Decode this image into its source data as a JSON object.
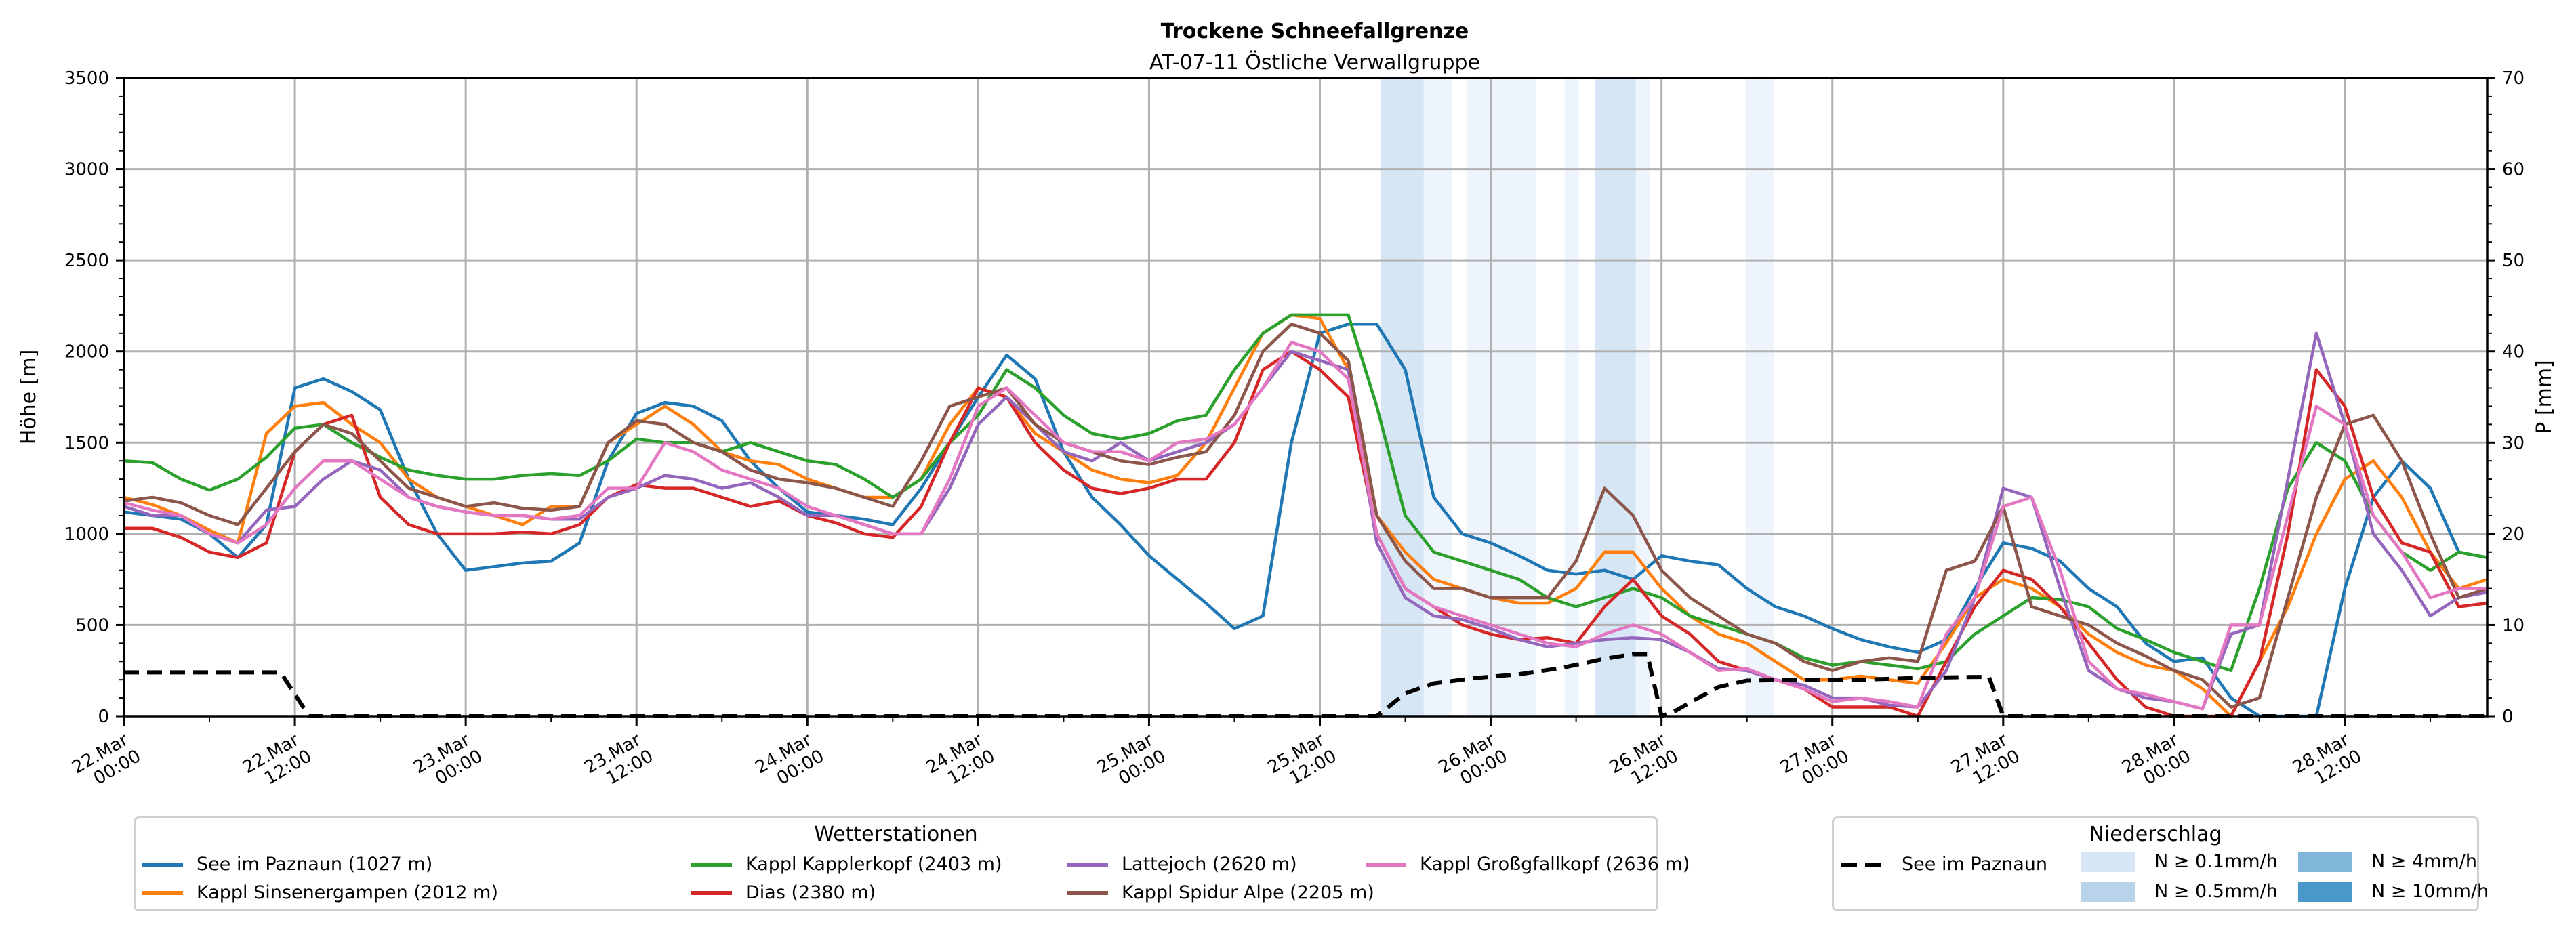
{
  "chart_data": {
    "type": "line",
    "title": "Trockene Schneefallgrenze",
    "subtitle": "AT-07-11 Östliche Verwallgruppe",
    "ylabel": "Höhe [m]",
    "y2label": "P [mm]",
    "ylim": [
      0,
      3500
    ],
    "y2lim": [
      0,
      70
    ],
    "yticks": [
      "0",
      "500",
      "1000",
      "1500",
      "2000",
      "2500",
      "3000",
      "3500"
    ],
    "y2ticks": [
      "0",
      "10",
      "20",
      "30",
      "40",
      "50",
      "60",
      "70"
    ],
    "x_unit": "hours since 22.Mar 00:00",
    "xlim": [
      0,
      166
    ],
    "xticks": [
      {
        "h": 0,
        "label1": "22.Mar",
        "label2": "00:00"
      },
      {
        "h": 12,
        "label1": "22.Mar",
        "label2": "12:00"
      },
      {
        "h": 24,
        "label1": "23.Mar",
        "label2": "00:00"
      },
      {
        "h": 36,
        "label1": "23.Mar",
        "label2": "12:00"
      },
      {
        "h": 48,
        "label1": "24.Mar",
        "label2": "00:00"
      },
      {
        "h": 60,
        "label1": "24.Mar",
        "label2": "12:00"
      },
      {
        "h": 72,
        "label1": "25.Mar",
        "label2": "00:00"
      },
      {
        "h": 84,
        "label1": "25.Mar",
        "label2": "12:00"
      },
      {
        "h": 96,
        "label1": "26.Mar",
        "label2": "00:00"
      },
      {
        "h": 108,
        "label1": "26.Mar",
        "label2": "12:00"
      },
      {
        "h": 120,
        "label1": "27.Mar",
        "label2": "00:00"
      },
      {
        "h": 132,
        "label1": "27.Mar",
        "label2": "12:00"
      },
      {
        "h": 144,
        "label1": "28.Mar",
        "label2": "00:00"
      },
      {
        "h": 156,
        "label1": "28.Mar",
        "label2": "12:00"
      }
    ],
    "grid": true,
    "x": [
      0,
      2,
      4,
      6,
      8,
      10,
      12,
      14,
      16,
      18,
      20,
      22,
      24,
      26,
      28,
      30,
      32,
      34,
      36,
      38,
      40,
      42,
      44,
      46,
      48,
      50,
      52,
      54,
      56,
      58,
      60,
      62,
      64,
      66,
      68,
      70,
      72,
      74,
      76,
      78,
      80,
      82,
      84,
      86,
      88,
      90,
      92,
      94,
      96,
      98,
      100,
      102,
      104,
      106,
      108,
      110,
      112,
      114,
      116,
      118,
      120,
      122,
      124,
      126,
      128,
      130,
      132,
      134,
      136,
      138,
      140,
      142,
      144,
      146,
      148,
      150,
      152,
      154,
      156,
      158,
      160,
      162,
      164,
      166
    ],
    "series": [
      {
        "name": "See im Paznaun (1027 m)",
        "color": "#1f77b4",
        "values": [
          1120,
          1100,
          1080,
          1000,
          870,
          1050,
          1800,
          1850,
          1780,
          1680,
          1300,
          1000,
          800,
          820,
          840,
          850,
          950,
          1400,
          1660,
          1720,
          1700,
          1620,
          1400,
          1250,
          1120,
          1100,
          1080,
          1050,
          1250,
          1500,
          1750,
          1980,
          1850,
          1450,
          1200,
          1050,
          880,
          750,
          620,
          480,
          550,
          1500,
          2100,
          2150,
          2150,
          1900,
          1200,
          1000,
          950,
          880,
          800,
          780,
          800,
          750,
          880,
          850,
          830,
          700,
          600,
          550,
          480,
          420,
          380,
          350,
          420,
          700,
          950,
          920,
          850,
          700,
          600,
          400,
          300,
          320,
          100,
          0,
          0,
          0,
          700,
          1200,
          1400,
          1250,
          900,
          870
        ]
      },
      {
        "name": "Kappl Sinsenergampen (2012 m)",
        "color": "#ff7f0e",
        "values": [
          1200,
          1160,
          1100,
          1020,
          950,
          1550,
          1700,
          1720,
          1600,
          1500,
          1300,
          1200,
          1150,
          1100,
          1050,
          1150,
          1150,
          1500,
          1600,
          1700,
          1600,
          1450,
          1400,
          1380,
          1300,
          1250,
          1200,
          1200,
          1300,
          1600,
          1800,
          1750,
          1550,
          1450,
          1350,
          1300,
          1280,
          1320,
          1500,
          1800,
          2100,
          2200,
          2180,
          1900,
          1100,
          900,
          750,
          700,
          650,
          620,
          620,
          700,
          900,
          900,
          700,
          550,
          450,
          400,
          300,
          200,
          200,
          220,
          200,
          180,
          400,
          650,
          750,
          700,
          600,
          450,
          350,
          280,
          250,
          150,
          0,
          300,
          600,
          1000,
          1300,
          1400,
          1200,
          900,
          700,
          750
        ]
      },
      {
        "name": "Kappl Kapplerkopf (2403 m)",
        "color": "#2ca02c",
        "values": [
          1400,
          1390,
          1300,
          1240,
          1300,
          1420,
          1580,
          1600,
          1500,
          1420,
          1350,
          1320,
          1300,
          1300,
          1320,
          1330,
          1320,
          1400,
          1520,
          1500,
          1500,
          1450,
          1500,
          1450,
          1400,
          1380,
          1300,
          1200,
          1300,
          1500,
          1650,
          1900,
          1800,
          1650,
          1550,
          1520,
          1550,
          1620,
          1650,
          1900,
          2100,
          2200,
          2200,
          2200,
          1700,
          1100,
          900,
          850,
          800,
          750,
          650,
          600,
          650,
          700,
          650,
          550,
          500,
          450,
          400,
          320,
          280,
          300,
          280,
          260,
          300,
          450,
          550,
          650,
          640,
          600,
          480,
          420,
          350,
          300,
          250,
          700,
          1250,
          1500,
          1400,
          1100,
          900,
          800,
          900,
          870
        ]
      },
      {
        "name": "Dias (2380 m)",
        "color": "#d62728",
        "values": [
          1030,
          1030,
          980,
          900,
          870,
          950,
          1450,
          1600,
          1650,
          1200,
          1050,
          1000,
          1000,
          1000,
          1010,
          1000,
          1050,
          1200,
          1270,
          1250,
          1250,
          1200,
          1150,
          1180,
          1100,
          1060,
          1000,
          980,
          1150,
          1500,
          1800,
          1750,
          1500,
          1350,
          1250,
          1220,
          1250,
          1300,
          1300,
          1500,
          1900,
          2000,
          1900,
          1750,
          1000,
          700,
          600,
          500,
          450,
          420,
          430,
          400,
          600,
          750,
          550,
          450,
          300,
          250,
          200,
          150,
          50,
          50,
          50,
          0,
          300,
          600,
          800,
          750,
          600,
          400,
          200,
          50,
          0,
          0,
          0,
          300,
          1000,
          1900,
          1700,
          1200,
          950,
          900,
          600,
          620
        ]
      },
      {
        "name": "Lattejoch (2620 m)",
        "color": "#9467bd",
        "values": [
          1150,
          1100,
          1100,
          1000,
          950,
          1130,
          1150,
          1300,
          1400,
          1350,
          1200,
          1150,
          1120,
          1100,
          1100,
          1080,
          1080,
          1200,
          1250,
          1320,
          1300,
          1250,
          1280,
          1200,
          1100,
          1100,
          1050,
          1000,
          1000,
          1250,
          1600,
          1750,
          1600,
          1450,
          1400,
          1500,
          1400,
          1450,
          1500,
          1600,
          1800,
          2000,
          1950,
          1900,
          950,
          650,
          550,
          530,
          480,
          420,
          380,
          400,
          420,
          430,
          420,
          350,
          260,
          250,
          200,
          170,
          100,
          100,
          60,
          50,
          250,
          650,
          1250,
          1200,
          700,
          250,
          150,
          100,
          80,
          40,
          450,
          500,
          1300,
          2100,
          1600,
          1000,
          800,
          550,
          650,
          680
        ]
      },
      {
        "name": "Kappl Spidur Alpe (2205 m)",
        "color": "#8c564b",
        "values": [
          1180,
          1200,
          1170,
          1100,
          1050,
          1250,
          1450,
          1600,
          1550,
          1400,
          1250,
          1200,
          1150,
          1170,
          1140,
          1130,
          1150,
          1500,
          1620,
          1600,
          1500,
          1450,
          1350,
          1300,
          1280,
          1250,
          1200,
          1150,
          1400,
          1700,
          1750,
          1800,
          1600,
          1500,
          1450,
          1400,
          1380,
          1420,
          1450,
          1650,
          2000,
          2150,
          2100,
          1950,
          1100,
          850,
          700,
          700,
          650,
          650,
          650,
          850,
          1250,
          1100,
          800,
          650,
          550,
          450,
          400,
          300,
          250,
          300,
          320,
          300,
          800,
          850,
          1150,
          600,
          550,
          500,
          400,
          330,
          250,
          200,
          50,
          100,
          650,
          1200,
          1600,
          1650,
          1400,
          1000,
          650,
          700
        ]
      },
      {
        "name": "Kappl Großgfallkopf (2636 m)",
        "color": "#e377c2",
        "values": [
          1170,
          1130,
          1100,
          1000,
          950,
          1050,
          1250,
          1400,
          1400,
          1300,
          1200,
          1150,
          1120,
          1100,
          1100,
          1080,
          1100,
          1250,
          1250,
          1500,
          1450,
          1350,
          1300,
          1250,
          1150,
          1100,
          1050,
          1000,
          1000,
          1300,
          1700,
          1800,
          1650,
          1500,
          1450,
          1450,
          1400,
          1500,
          1520,
          1600,
          1800,
          2050,
          2000,
          1850,
          1000,
          700,
          600,
          550,
          500,
          450,
          400,
          380,
          450,
          500,
          450,
          350,
          250,
          260,
          200,
          150,
          80,
          100,
          80,
          50,
          450,
          650,
          1150,
          1200,
          800,
          300,
          150,
          120,
          80,
          40,
          500,
          500,
          1100,
          1700,
          1600,
          1100,
          900,
          650,
          700,
          700
        ]
      }
    ],
    "precip_series": {
      "name": "See im Paznaun",
      "style": "dashed",
      "color": "#000000",
      "x": [
        0,
        11,
        13,
        88,
        90,
        92,
        95,
        98,
        101,
        104,
        106,
        107,
        108,
        109,
        110,
        112,
        114,
        118,
        122,
        126,
        130,
        131,
        132,
        166
      ],
      "values": [
        4.8,
        4.8,
        0,
        0,
        2.5,
        3.6,
        4.2,
        4.6,
        5.3,
        6.3,
        6.8,
        6.8,
        0,
        0.6,
        1.5,
        3.2,
        3.9,
        4,
        4,
        4.2,
        4.3,
        4.3,
        0,
        0
      ]
    },
    "precip_intensity_bands": [
      {
        "start_h": 88.3,
        "end_h": 91.3,
        "class": "N ≥ 0.5mm/h"
      },
      {
        "start_h": 91.3,
        "end_h": 93.3,
        "class": "N ≥ 0.1mm/h"
      },
      {
        "start_h": 94.3,
        "end_h": 99.2,
        "class": "N ≥ 0.1mm/h"
      },
      {
        "start_h": 101.2,
        "end_h": 102.2,
        "class": "N ≥ 0.1mm/h"
      },
      {
        "start_h": 103.3,
        "end_h": 106.2,
        "class": "N ≥ 0.5mm/h"
      },
      {
        "start_h": 106.2,
        "end_h": 107.2,
        "class": "N ≥ 0.1mm/h"
      },
      {
        "start_h": 113.9,
        "end_h": 115.9,
        "class": "N ≥ 0.1mm/h"
      }
    ],
    "legend_stations": {
      "title": "Wetterstationen",
      "placement": "bottom-left"
    },
    "legend_precip": {
      "title": "Niederschlag",
      "placement": "bottom-right",
      "line_label": "See im Paznaun",
      "classes": [
        {
          "label": "N ≥ 0.1mm/h",
          "color": "#d6e6f4"
        },
        {
          "label": "N ≥ 0.5mm/h",
          "color": "#b9d4ea"
        },
        {
          "label": "N ≥ 4mm/h",
          "color": "#7fb6d9"
        },
        {
          "label": "N ≥ 10mm/h",
          "color": "#4a98c9"
        }
      ]
    },
    "band_colors": {
      "N ≥ 0.1mm/h": "#eef4fb",
      "N ≥ 0.5mm/h": "#d6e6f4"
    }
  }
}
